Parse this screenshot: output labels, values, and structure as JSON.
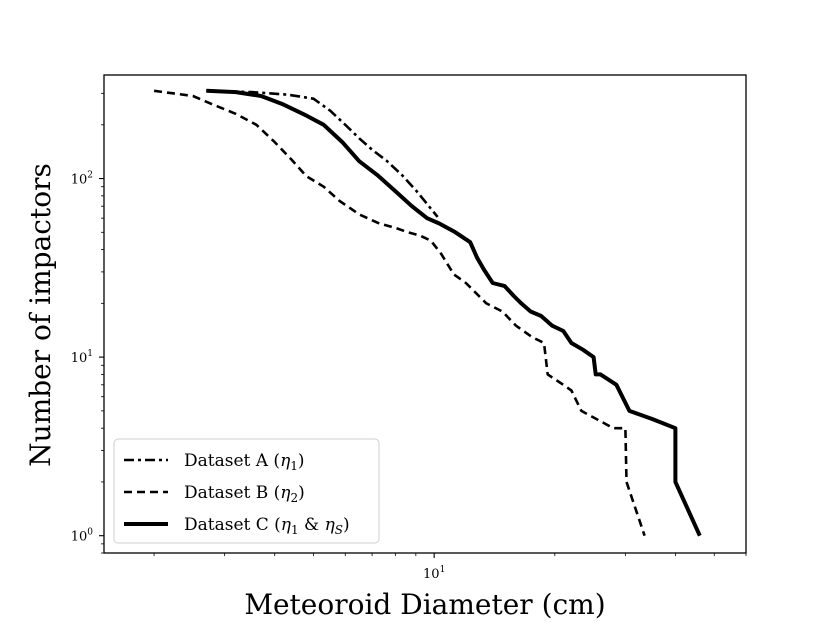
{
  "chart_data": {
    "type": "line",
    "title": "",
    "xlabel": "Meteoroid Diameter (cm)",
    "ylabel": "Number of impactors",
    "xscale": "log",
    "yscale": "log",
    "xlim": [
      1.5,
      60
    ],
    "ylim": [
      0.8,
      380
    ],
    "xticks": [
      {
        "value": 10,
        "label": "10",
        "exp": "1"
      }
    ],
    "yticks": [
      {
        "value": 1,
        "label": "10",
        "exp": "0"
      },
      {
        "value": 10,
        "label": "10",
        "exp": "1"
      },
      {
        "value": 100,
        "label": "10",
        "exp": "2"
      }
    ],
    "grid": false,
    "legend_position": "lower-left",
    "series": [
      {
        "name": "Dataset A (η1)",
        "legend": {
          "base": "Dataset A (",
          "symbol": "η",
          "sub": "1",
          "rest": "",
          "symbol2": "",
          "sub2": "",
          "close": ")"
        },
        "style": "dashdot",
        "color": "#000000",
        "x": [
          2.7,
          3.5,
          4.3,
          5.0,
          5.5,
          6.0,
          6.5,
          7.0,
          7.6,
          8.3,
          9.0,
          9.6,
          10.2
        ],
        "y": [
          310,
          305,
          295,
          280,
          240,
          200,
          168,
          145,
          126,
          105,
          86,
          72,
          61
        ]
      },
      {
        "name": "Dataset B (η2)",
        "legend": {
          "base": "Dataset B (",
          "symbol": "η",
          "sub": "2",
          "rest": "",
          "symbol2": "",
          "sub2": "",
          "close": ")"
        },
        "style": "dashed",
        "color": "#000000",
        "x": [
          2.0,
          2.5,
          2.8,
          3.2,
          3.6,
          4.0,
          4.4,
          4.8,
          5.3,
          5.8,
          6.5,
          7.3,
          8.0,
          8.6,
          9.2,
          9.8,
          10.4,
          11.2,
          12.0,
          13.5,
          14.8,
          16.0,
          17.5,
          18.8,
          19.2,
          21.0,
          22.0,
          23.3,
          28.0,
          30.0,
          30.2,
          33.5
        ],
        "y": [
          310,
          290,
          260,
          230,
          200,
          160,
          128,
          103,
          90,
          75,
          63,
          56,
          53,
          50,
          48,
          45,
          38,
          29,
          26,
          20,
          18,
          15,
          13,
          12,
          8,
          7,
          6.5,
          5,
          4,
          4,
          2,
          1
        ]
      },
      {
        "name": "Dataset C (η1 & ηS)",
        "legend": {
          "base": "Dataset C (",
          "symbol": "η",
          "sub": "1",
          "rest": " & ",
          "symbol2": "η",
          "sub2": "S",
          "close": ")"
        },
        "style": "solid",
        "color": "#000000",
        "x": [
          2.7,
          3.2,
          3.7,
          4.2,
          4.8,
          5.3,
          5.9,
          6.5,
          7.2,
          8.0,
          8.8,
          9.6,
          10.3,
          11.3,
          12.3,
          12.8,
          13.3,
          14.0,
          15.0,
          15.8,
          16.5,
          17.4,
          18.5,
          19.7,
          21.0,
          22.0,
          23.5,
          25.0,
          25.3,
          26.0,
          28.5,
          30.7,
          35.0,
          40.0,
          40.0,
          46.0
        ],
        "y": [
          310,
          305,
          290,
          260,
          225,
          200,
          160,
          125,
          105,
          85,
          70,
          60,
          56,
          50,
          44,
          36,
          31,
          26,
          25,
          22,
          20,
          18,
          17,
          15,
          14,
          12,
          11,
          10,
          8,
          8,
          7,
          5,
          4.5,
          4,
          2,
          1
        ]
      }
    ]
  }
}
